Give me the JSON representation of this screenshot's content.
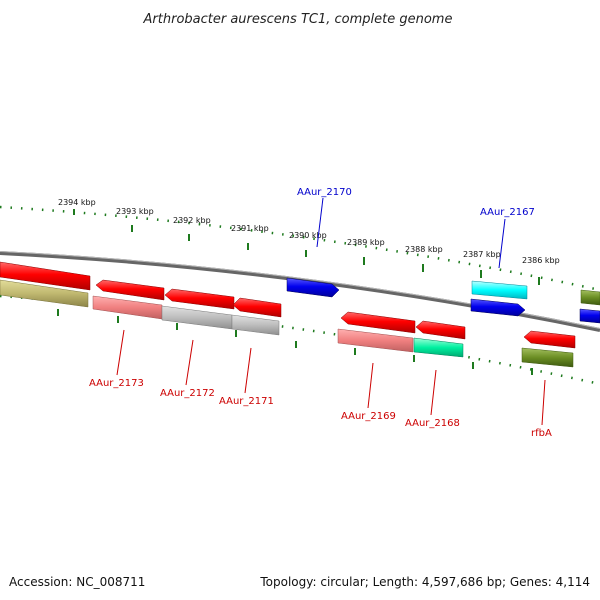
{
  "title": "Arthrobacter aurescens TC1, complete genome",
  "footer": {
    "accession": "Accession: NC_008711",
    "topology": "Topology: circular; Length: 4,597,686 bp; Genes: 4,114"
  },
  "colors": {
    "backbone": "#7a7a7a",
    "tick": "#1e7a1e",
    "forward_label": "#0000cc",
    "reverse_label": "#cc0000"
  },
  "ticks": [
    "2394 kbp",
    "2393 kbp",
    "2392 kbp",
    "2391 kbp",
    "2390 kbp",
    "2389 kbp",
    "2388 kbp",
    "2387 kbp",
    "2386 kbp"
  ],
  "labels": {
    "forward": [
      "AAur_2170",
      "AAur_2167"
    ],
    "reverse": [
      "AAur_2173",
      "AAur_2172",
      "AAur_2171",
      "AAur_2169",
      "AAur_2168",
      "rfbA"
    ]
  }
}
